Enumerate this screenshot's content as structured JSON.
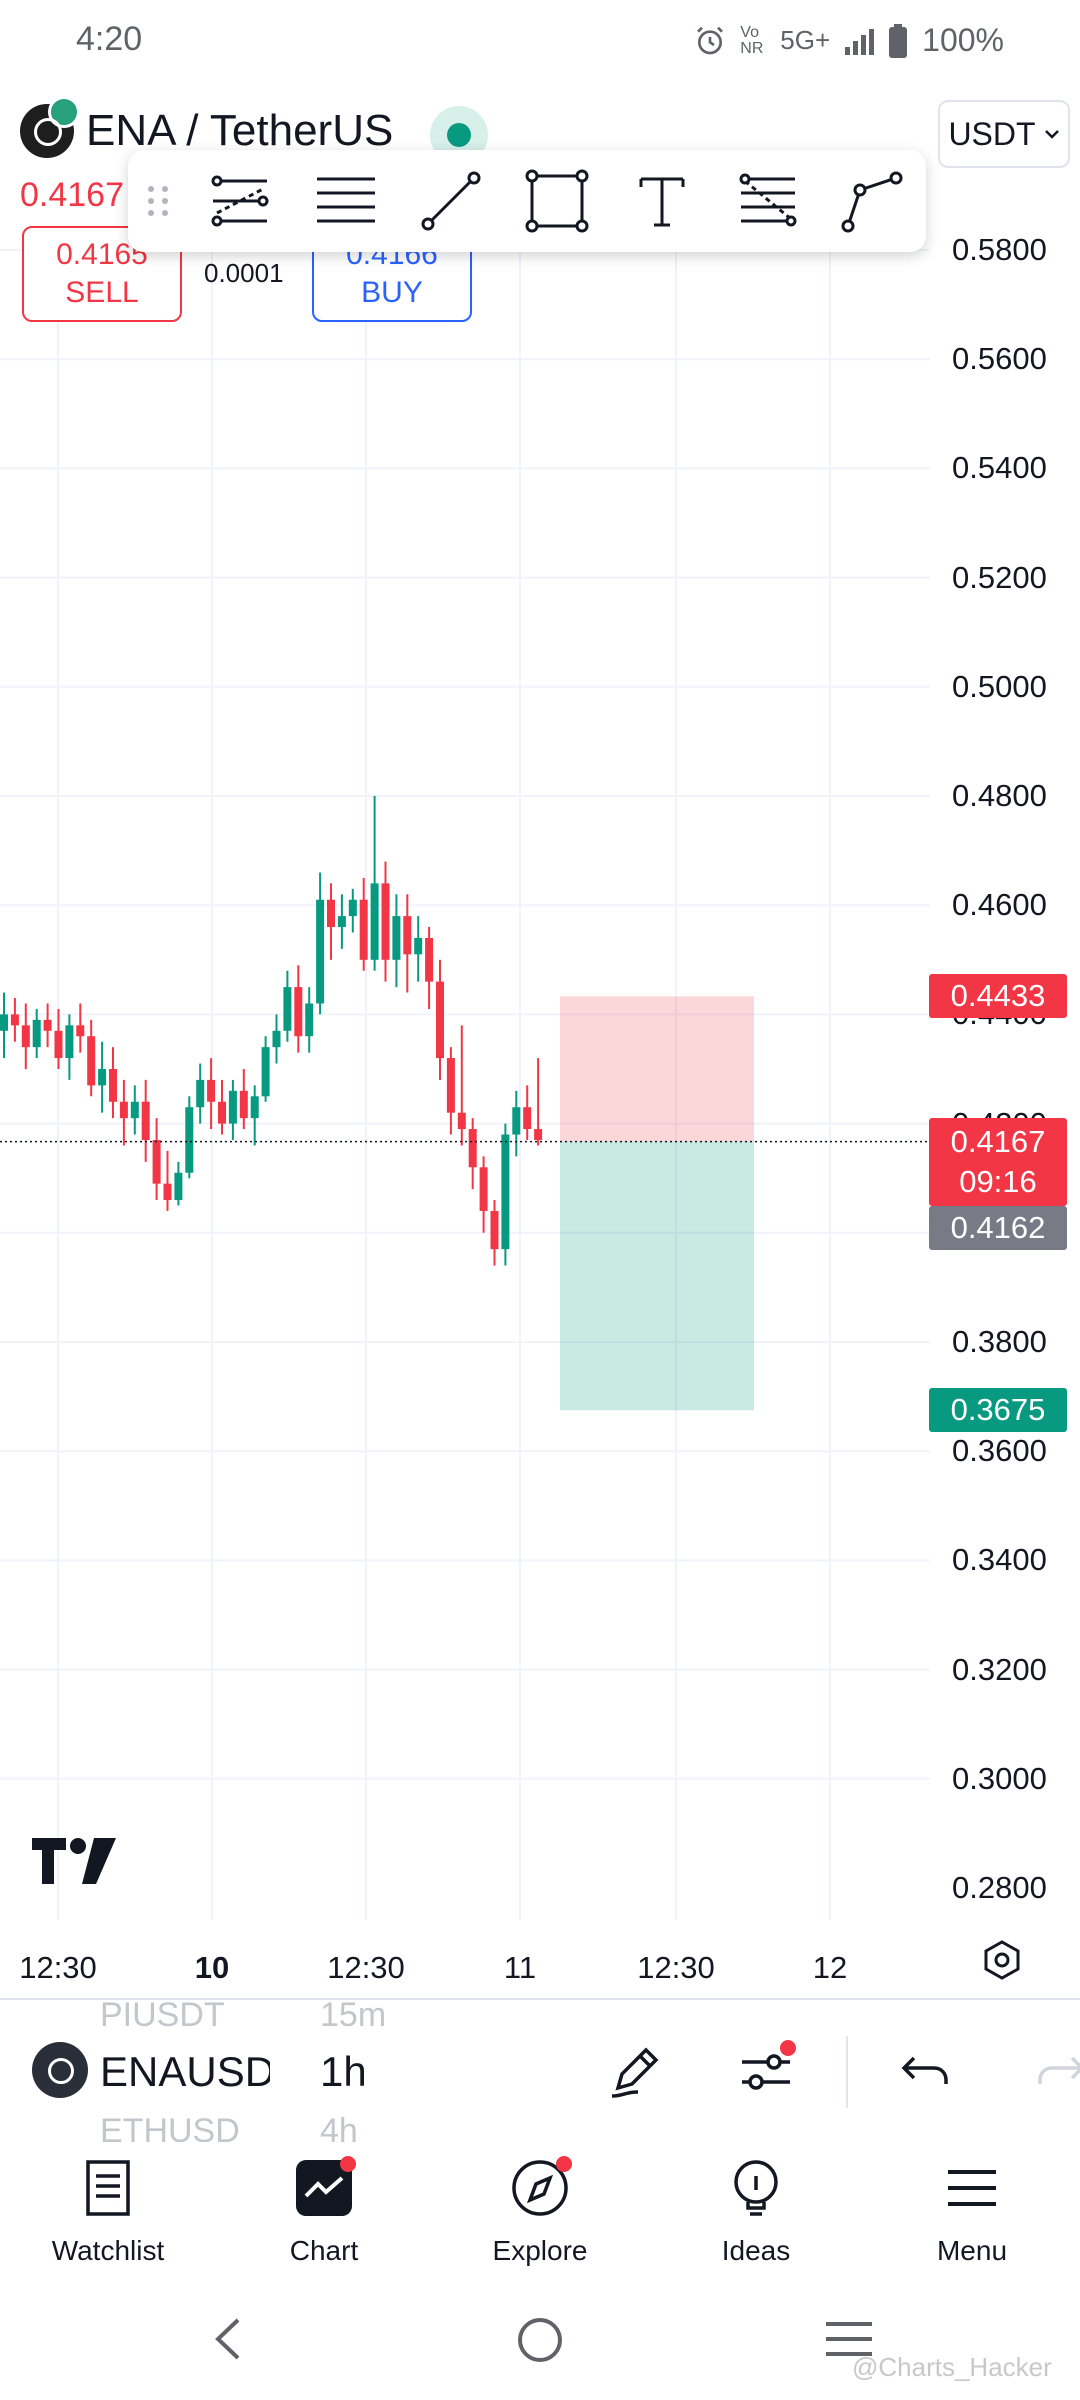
{
  "status_bar": {
    "time": "4:20",
    "network": "5G+",
    "volte": "Vo NR",
    "battery": "100%"
  },
  "header": {
    "symbol": "ENA / TetherUS",
    "currency": "USDT",
    "last_price": "0.4167",
    "sell_price": "0.4165",
    "sell_label": "SELL",
    "buy_price": "0.4166",
    "buy_label": "BUY",
    "spread": "0.0001"
  },
  "drawing_toolbar": {
    "tools": [
      "pitchfork-icon",
      "parallel-channel-icon",
      "trend-line-icon",
      "rectangle-icon",
      "text-icon",
      "fib-retracement-icon",
      "path-icon"
    ]
  },
  "chart_data": {
    "type": "candlestick",
    "symbol": "ENAUSDT",
    "interval": "1h",
    "price_axis_ticks": [
      "0.5800",
      "0.5600",
      "0.5400",
      "0.5200",
      "0.5000",
      "0.4800",
      "0.4600",
      "0.4400",
      "0.4200",
      "0.3800",
      "0.3600",
      "0.3400",
      "0.3200",
      "0.3000",
      "0.2800"
    ],
    "time_axis_ticks": [
      {
        "label": "12:30",
        "bold": false
      },
      {
        "label": "10",
        "bold": true
      },
      {
        "label": "12:30",
        "bold": false
      },
      {
        "label": "11",
        "bold": false
      },
      {
        "label": "12:30",
        "bold": false
      },
      {
        "label": "12",
        "bold": false
      }
    ],
    "ylim": [
      0.275,
      0.59
    ],
    "candles": [
      [
        0.437,
        0.444,
        0.432,
        0.44
      ],
      [
        0.44,
        0.443,
        0.435,
        0.438
      ],
      [
        0.438,
        0.442,
        0.43,
        0.434
      ],
      [
        0.434,
        0.441,
        0.432,
        0.439
      ],
      [
        0.439,
        0.442,
        0.434,
        0.437
      ],
      [
        0.437,
        0.441,
        0.43,
        0.432
      ],
      [
        0.432,
        0.44,
        0.428,
        0.438
      ],
      [
        0.438,
        0.442,
        0.433,
        0.436
      ],
      [
        0.436,
        0.439,
        0.425,
        0.427
      ],
      [
        0.427,
        0.435,
        0.422,
        0.43
      ],
      [
        0.43,
        0.434,
        0.421,
        0.424
      ],
      [
        0.424,
        0.428,
        0.416,
        0.421
      ],
      [
        0.421,
        0.427,
        0.418,
        0.424
      ],
      [
        0.424,
        0.428,
        0.413,
        0.417
      ],
      [
        0.417,
        0.421,
        0.406,
        0.409
      ],
      [
        0.409,
        0.415,
        0.404,
        0.406
      ],
      [
        0.406,
        0.413,
        0.405,
        0.411
      ],
      [
        0.411,
        0.425,
        0.41,
        0.423
      ],
      [
        0.423,
        0.431,
        0.42,
        0.428
      ],
      [
        0.428,
        0.432,
        0.419,
        0.424
      ],
      [
        0.424,
        0.428,
        0.418,
        0.42
      ],
      [
        0.42,
        0.428,
        0.417,
        0.426
      ],
      [
        0.426,
        0.43,
        0.419,
        0.421
      ],
      [
        0.421,
        0.427,
        0.416,
        0.425
      ],
      [
        0.425,
        0.436,
        0.424,
        0.434
      ],
      [
        0.434,
        0.44,
        0.431,
        0.437
      ],
      [
        0.437,
        0.448,
        0.435,
        0.445
      ],
      [
        0.445,
        0.449,
        0.433,
        0.436
      ],
      [
        0.436,
        0.445,
        0.433,
        0.442
      ],
      [
        0.442,
        0.466,
        0.44,
        0.461
      ],
      [
        0.461,
        0.464,
        0.45,
        0.456
      ],
      [
        0.456,
        0.462,
        0.452,
        0.458
      ],
      [
        0.458,
        0.463,
        0.455,
        0.461
      ],
      [
        0.461,
        0.465,
        0.448,
        0.45
      ],
      [
        0.45,
        0.48,
        0.448,
        0.464
      ],
      [
        0.464,
        0.468,
        0.446,
        0.45
      ],
      [
        0.45,
        0.462,
        0.445,
        0.458
      ],
      [
        0.458,
        0.462,
        0.444,
        0.451
      ],
      [
        0.451,
        0.458,
        0.446,
        0.454
      ],
      [
        0.454,
        0.456,
        0.441,
        0.446
      ],
      [
        0.446,
        0.45,
        0.428,
        0.432
      ],
      [
        0.432,
        0.434,
        0.418,
        0.422
      ],
      [
        0.422,
        0.438,
        0.416,
        0.419
      ],
      [
        0.419,
        0.421,
        0.408,
        0.412
      ],
      [
        0.412,
        0.414,
        0.4,
        0.404
      ],
      [
        0.404,
        0.406,
        0.394,
        0.397
      ],
      [
        0.397,
        0.42,
        0.394,
        0.418
      ],
      [
        0.418,
        0.426,
        0.414,
        0.423
      ],
      [
        0.423,
        0.427,
        0.417,
        0.419
      ],
      [
        0.419,
        0.432,
        0.416,
        0.417
      ]
    ],
    "position_tool": {
      "entry": 0.4167,
      "stop": 0.4433,
      "target": 0.3675
    }
  },
  "price_tags": {
    "stop": "0.4433",
    "current": "0.4167",
    "countdown": "09:16",
    "bid": "0.4162",
    "target": "0.3675"
  },
  "control_bar": {
    "symbol": "ENAUSD",
    "symbol_prev": "PIUSDT",
    "symbol_next": "ETHUSD",
    "interval": "1h",
    "interval_prev": "15m",
    "interval_next": "4h"
  },
  "bottom_nav": [
    {
      "label": "Watchlist",
      "icon": "watchlist-icon"
    },
    {
      "label": "Chart",
      "icon": "chart-icon"
    },
    {
      "label": "Explore",
      "icon": "compass-icon"
    },
    {
      "label": "Ideas",
      "icon": "lightbulb-icon"
    },
    {
      "label": "Menu",
      "icon": "hamburger-icon"
    }
  ],
  "watermark": "@Charts_Hacker",
  "colors": {
    "up": "#089981",
    "down": "#f23645",
    "accent": "#2962ff"
  }
}
